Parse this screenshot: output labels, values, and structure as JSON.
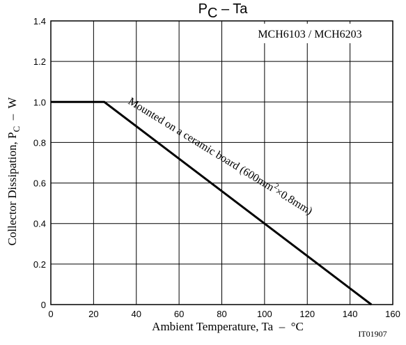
{
  "chart_data": {
    "type": "line",
    "title": {
      "main": "P",
      "sub": "C",
      "rest": " – Ta"
    },
    "xlabel": "Ambient Temperature, Ta  –  °C",
    "ylabel": {
      "main": "Collector Dissipation, P",
      "sub": "C",
      "rest": "  –  W"
    },
    "xlim": [
      0,
      160
    ],
    "ylim": [
      0,
      1.4
    ],
    "xticks": [
      "0",
      "20",
      "40",
      "60",
      "80",
      "100",
      "120",
      "140",
      "160"
    ],
    "yticks": [
      "0",
      "0.2",
      "0.4",
      "0.6",
      "0.8",
      "1.0",
      "1.2",
      "1.4"
    ],
    "grid": true,
    "legend_box": "MCH6103 / MCH6203",
    "code": "IT01907",
    "series": [
      {
        "name": "",
        "x": [
          0,
          25,
          150
        ],
        "y": [
          1.0,
          1.0,
          0
        ]
      }
    ],
    "annotation": {
      "text_before": "Mounted on a ceramic board (600mm",
      "superscript": "2",
      "text_after": "×0.8mm)"
    }
  }
}
